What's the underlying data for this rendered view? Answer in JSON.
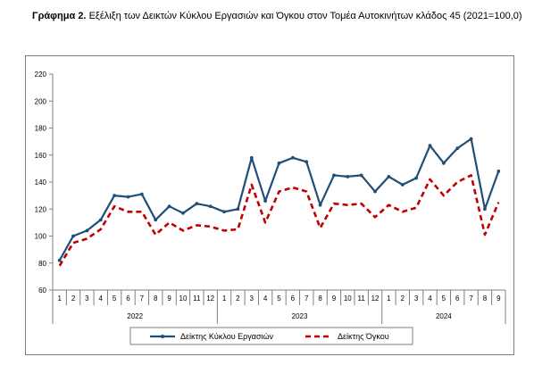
{
  "title": {
    "prefix": "Γράφημα 2.",
    "text": "Εξέλιξη των Δεικτών Κύκλου Εργασιών και Όγκου στον Τομέα Αυτοκινήτων κλάδος 45 (2021=100,0)"
  },
  "chart_data": {
    "type": "line",
    "title": "Γράφημα 2. Εξέλιξη των Δεικτών Κύκλου Εργασιών και Όγκου στον Τομέα Αυτοκινήτων κλάδος 45 (2021=100,0)",
    "xlabel": "",
    "ylabel": "",
    "ylim": [
      60,
      220
    ],
    "yticks": [
      60,
      80,
      100,
      120,
      140,
      160,
      180,
      200,
      220
    ],
    "grid": false,
    "legend": "bottom",
    "categories": [
      "1",
      "2",
      "3",
      "4",
      "5",
      "6",
      "7",
      "8",
      "9",
      "10",
      "11",
      "12",
      "1",
      "2",
      "3",
      "4",
      "5",
      "6",
      "7",
      "8",
      "9",
      "10",
      "11",
      "12",
      "1",
      "2",
      "3",
      "4",
      "5",
      "6",
      "7",
      "8",
      "9"
    ],
    "years": [
      {
        "label": "2022",
        "start": 0,
        "end": 11
      },
      {
        "label": "2023",
        "start": 12,
        "end": 23
      },
      {
        "label": "2024",
        "start": 24,
        "end": 32
      }
    ],
    "series": [
      {
        "name": "Δείκτης Κύκλου Εργασιών",
        "color": "#1f4e79",
        "style": "solid-markers",
        "values": [
          82,
          100,
          104,
          112,
          130,
          129,
          131,
          112,
          122,
          117,
          124,
          122,
          118,
          120,
          158,
          126,
          154,
          158,
          155,
          123,
          145,
          144,
          145,
          133,
          144,
          138,
          143,
          167,
          154,
          165,
          172,
          120,
          148
        ]
      },
      {
        "name": "Δείκτης Όγκου",
        "color": "#c00000",
        "style": "dashed",
        "values": [
          78,
          95,
          98,
          105,
          122,
          118,
          118,
          101,
          110,
          104,
          108,
          107,
          104,
          105,
          138,
          110,
          133,
          136,
          133,
          106,
          124,
          123,
          124,
          114,
          123,
          118,
          121,
          142,
          130,
          140,
          145,
          101,
          125
        ]
      }
    ]
  }
}
